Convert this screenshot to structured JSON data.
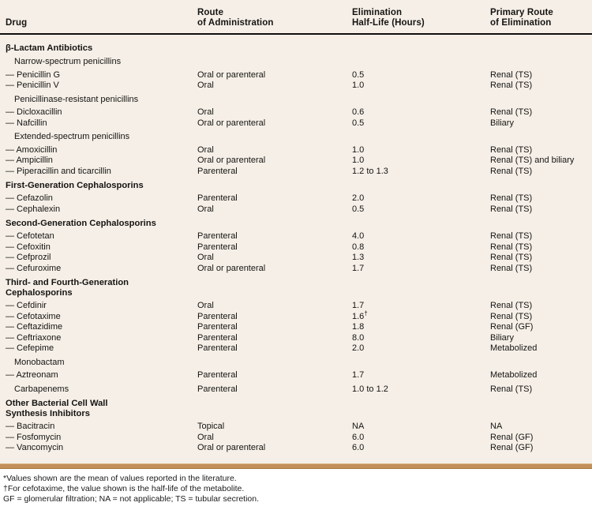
{
  "colors": {
    "table_background": "#f5efe7",
    "header_rule": "#101010",
    "divider_bar": "#c3905a",
    "footnote_background": "#ffffff",
    "text": "#161412"
  },
  "header": {
    "columns": [
      "Drug",
      "Route\nof Administration",
      "Elimination\nHalf-Life (Hours)",
      "Primary Route\nof Elimination"
    ]
  },
  "table": {
    "rows": [
      {
        "type": "section",
        "drug": "β-Lactam Antibiotics"
      },
      {
        "type": "subsection",
        "drug": "Narrow-spectrum penicillins"
      },
      {
        "type": "drug",
        "drug": "— Penicillin G",
        "route": "Oral or parenteral",
        "half_life": "0.5",
        "elim": "Renal (TS)"
      },
      {
        "type": "drug",
        "drug": "— Penicillin V",
        "route": "Oral",
        "half_life": "1.0",
        "elim": "Renal (TS)"
      },
      {
        "type": "subsection",
        "drug": "Penicillinase-resistant penicillins"
      },
      {
        "type": "drug",
        "drug": "— Dicloxacillin",
        "route": "Oral",
        "half_life": "0.6",
        "elim": "Renal (TS)"
      },
      {
        "type": "drug",
        "drug": "— Nafcillin",
        "route": "Oral or parenteral",
        "half_life": "0.5",
        "elim": "Biliary"
      },
      {
        "type": "subsection",
        "drug": "Extended-spectrum penicillins"
      },
      {
        "type": "drug",
        "drug": "— Amoxicillin",
        "route": "Oral",
        "half_life": "1.0",
        "elim": "Renal (TS)"
      },
      {
        "type": "drug",
        "drug": "— Ampicillin",
        "route": "Oral or parenteral",
        "half_life": "1.0",
        "elim": "Renal (TS) and biliary"
      },
      {
        "type": "drug",
        "drug": "— Piperacillin and ticarcillin",
        "route": "Parenteral",
        "half_life": "1.2 to 1.3",
        "elim": "Renal (TS)"
      },
      {
        "type": "section",
        "drug": "First-Generation Cephalosporins"
      },
      {
        "type": "drug",
        "drug": "— Cefazolin",
        "route": "Parenteral",
        "half_life": "2.0",
        "elim": "Renal (TS)"
      },
      {
        "type": "drug",
        "drug": "— Cephalexin",
        "route": "Oral",
        "half_life": "0.5",
        "elim": "Renal (TS)"
      },
      {
        "type": "section",
        "drug": "Second-Generation Cephalosporins"
      },
      {
        "type": "drug",
        "drug": "— Cefotetan",
        "route": "Parenteral",
        "half_life": "4.0",
        "elim": "Renal (TS)"
      },
      {
        "type": "drug",
        "drug": "— Cefoxitin",
        "route": "Parenteral",
        "half_life": "0.8",
        "elim": "Renal (TS)"
      },
      {
        "type": "drug",
        "drug": "— Cefprozil",
        "route": "Oral",
        "half_life": "1.3",
        "elim": "Renal (TS)"
      },
      {
        "type": "drug",
        "drug": "— Cefuroxime",
        "route": "Oral or parenteral",
        "half_life": "1.7",
        "elim": "Renal (TS)"
      },
      {
        "type": "section",
        "drug": "Third- and Fourth-Generation\nCephalosporins"
      },
      {
        "type": "drug",
        "drug": "— Cefdinir",
        "route": "Oral",
        "half_life": "1.7",
        "elim": "Renal (TS)"
      },
      {
        "type": "drug",
        "drug": "— Cefotaxime",
        "route": "Parenteral",
        "half_life": "1.6",
        "half_life_sup": "†",
        "elim": "Renal (TS)"
      },
      {
        "type": "drug",
        "drug": "— Ceftazidime",
        "route": "Parenteral",
        "half_life": "1.8",
        "elim": "Renal (GF)"
      },
      {
        "type": "drug",
        "drug": "— Ceftriaxone",
        "route": "Parenteral",
        "half_life": "8.0",
        "elim": "Biliary"
      },
      {
        "type": "drug",
        "drug": "— Cefepime",
        "route": "Parenteral",
        "half_life": "2.0",
        "elim": "Metabolized"
      },
      {
        "type": "subsection",
        "drug": "Monobactam"
      },
      {
        "type": "drug",
        "drug": "— Aztreonam",
        "route": "Parenteral",
        "half_life": "1.7",
        "elim": "Metabolized"
      },
      {
        "type": "subsection",
        "drug": "Carbapenems",
        "route": "Parenteral",
        "half_life": "1.0 to 1.2",
        "elim": "Renal (TS)"
      },
      {
        "type": "section",
        "drug": "Other Bacterial Cell Wall\nSynthesis Inhibitors"
      },
      {
        "type": "drug",
        "drug": "— Bacitracin",
        "route": "Topical",
        "half_life": "NA",
        "elim": "NA"
      },
      {
        "type": "drug",
        "drug": "— Fosfomycin",
        "route": "Oral",
        "half_life": "6.0",
        "elim": "Renal (GF)"
      },
      {
        "type": "drug",
        "drug": "— Vancomycin",
        "route": "Oral or parenteral",
        "half_life": "6.0",
        "elim": "Renal (GF)"
      }
    ]
  },
  "footnotes": [
    "*Values shown are the mean of values reported in the literature.",
    "†For cefotaxime, the value shown is the half-life of the metabolite.",
    "GF = glomerular filtration; NA = not applicable; TS = tubular secretion."
  ]
}
